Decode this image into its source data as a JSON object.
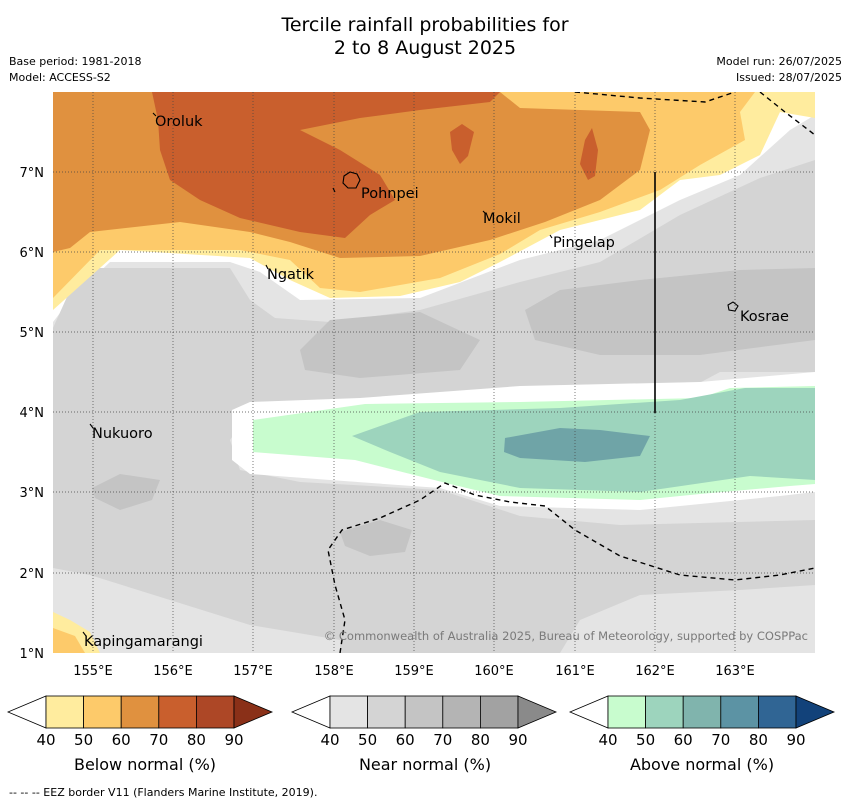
{
  "header": {
    "title_line1": "Tercile rainfall probabilities for",
    "title_line2": "2 to 8 August 2025",
    "base_period": "Base period: 1981-2018",
    "model": "Model: ACCESS-S2",
    "model_run": "Model run: 26/07/2025",
    "issued": "Issued: 28/07/2025"
  },
  "map": {
    "lat_labels": [
      "7°N",
      "6°N",
      "5°N",
      "4°N",
      "3°N",
      "2°N",
      "1°N"
    ],
    "lon_labels": [
      "155°E",
      "156°E",
      "157°E",
      "158°E",
      "159°E",
      "160°E",
      "161°E",
      "162°E",
      "163°E"
    ],
    "places": [
      "Oroluk",
      "Pohnpei",
      "Mokil",
      "Pingelap",
      "Ngatik",
      "Kosrae",
      "Nukuoro",
      "Kapingamarangi"
    ],
    "copyright": "© Commonwealth of Australia 2025, Bureau of Meteorology, supported by COSPPac"
  },
  "legends": [
    {
      "label": "Below normal (%)",
      "ticks": [
        "40",
        "50",
        "60",
        "70",
        "80",
        "90"
      ],
      "colors": [
        "#ffffff",
        "#ffec9e",
        "#fdca6a",
        "#e0913f",
        "#c95f2d",
        "#ad4726",
        "#8a3018"
      ]
    },
    {
      "label": "Near normal (%)",
      "ticks": [
        "40",
        "50",
        "60",
        "70",
        "80",
        "90"
      ],
      "colors": [
        "#ffffff",
        "#e4e4e4",
        "#d4d4d4",
        "#c4c4c4",
        "#b4b4b4",
        "#a2a2a2",
        "#8a8a8a"
      ]
    },
    {
      "label": "Above normal (%)",
      "ticks": [
        "40",
        "50",
        "60",
        "70",
        "80",
        "90"
      ],
      "colors": [
        "#ffffff",
        "#c8fcce",
        "#9dd4bd",
        "#80b4ad",
        "#5c93a4",
        "#306594",
        "#12427a"
      ]
    }
  ],
  "footer": "--  --  -- EEZ border V11 (Flanders Marine Institute, 2019)."
}
